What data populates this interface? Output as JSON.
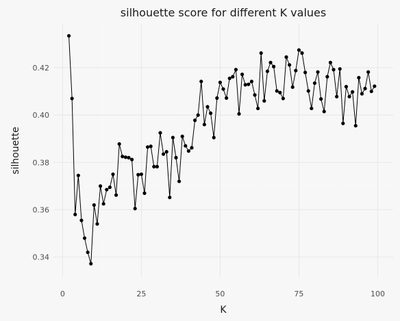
{
  "chart_data": {
    "type": "line",
    "title": "silhouette score for different K values",
    "xlabel": "K",
    "ylabel": "silhouette",
    "xlim": [
      -2.9,
      104.9
    ],
    "ylim": [
      0.3315,
      0.4385
    ],
    "xticks": [
      0,
      25,
      50,
      75,
      100
    ],
    "xtick_labels": [
      "0",
      "25",
      "50",
      "75",
      "100"
    ],
    "yticks": [
      0.34,
      0.36,
      0.38,
      0.4,
      0.42
    ],
    "ytick_labels": [
      "0.34",
      "0.36",
      "0.38",
      "0.40",
      "0.42"
    ],
    "grid": true,
    "series": [
      {
        "markers": true,
        "color": "#000000",
        "x": [
          2,
          3,
          4,
          5,
          6,
          7,
          8,
          9,
          10,
          11,
          12,
          13,
          14,
          15,
          16,
          17,
          18,
          19,
          20,
          21,
          22,
          23,
          24,
          25,
          26,
          27,
          28,
          29,
          30,
          31,
          32,
          33,
          34,
          35,
          36,
          37,
          38,
          39,
          40,
          41,
          42,
          43,
          44,
          45,
          46,
          47,
          48,
          49,
          50,
          51,
          52,
          53,
          54,
          55,
          56,
          57,
          58,
          59,
          60,
          61,
          62,
          63,
          64,
          65,
          66,
          67,
          68,
          69,
          70,
          71,
          72,
          73,
          74,
          75,
          76,
          77,
          78,
          79,
          80,
          81,
          82,
          83,
          84,
          85,
          86,
          87,
          88,
          89,
          90,
          91,
          92,
          93,
          94,
          95,
          96,
          97,
          98,
          99
        ],
        "y": [
          0.4335,
          0.407,
          0.358,
          0.3745,
          0.3555,
          0.348,
          0.342,
          0.3372,
          0.362,
          0.354,
          0.37,
          0.3625,
          0.3685,
          0.3695,
          0.375,
          0.3662,
          0.3878,
          0.3825,
          0.3822,
          0.382,
          0.3812,
          0.3605,
          0.3748,
          0.375,
          0.367,
          0.3865,
          0.3868,
          0.3782,
          0.3782,
          0.3925,
          0.3835,
          0.3845,
          0.3652,
          0.3905,
          0.382,
          0.372,
          0.391,
          0.387,
          0.3848,
          0.3862,
          0.3978,
          0.4,
          0.4142,
          0.396,
          0.4035,
          0.4008,
          0.3905,
          0.4072,
          0.4138,
          0.411,
          0.4072,
          0.4155,
          0.4162,
          0.4192,
          0.4005,
          0.4172,
          0.4128,
          0.413,
          0.4142,
          0.4085,
          0.4028,
          0.4262,
          0.406,
          0.4185,
          0.4222,
          0.4205,
          0.4102,
          0.4095,
          0.407,
          0.4245,
          0.4212,
          0.4118,
          0.4188,
          0.4275,
          0.4262,
          0.418,
          0.4102,
          0.4028,
          0.4135,
          0.4182,
          0.4068,
          0.4015,
          0.4162,
          0.4222,
          0.4192,
          0.4078,
          0.4195,
          0.3965,
          0.412,
          0.4078,
          0.4098,
          0.3955,
          0.4158,
          0.409,
          0.4112,
          0.4182,
          0.41,
          0.4122
        ]
      }
    ]
  }
}
